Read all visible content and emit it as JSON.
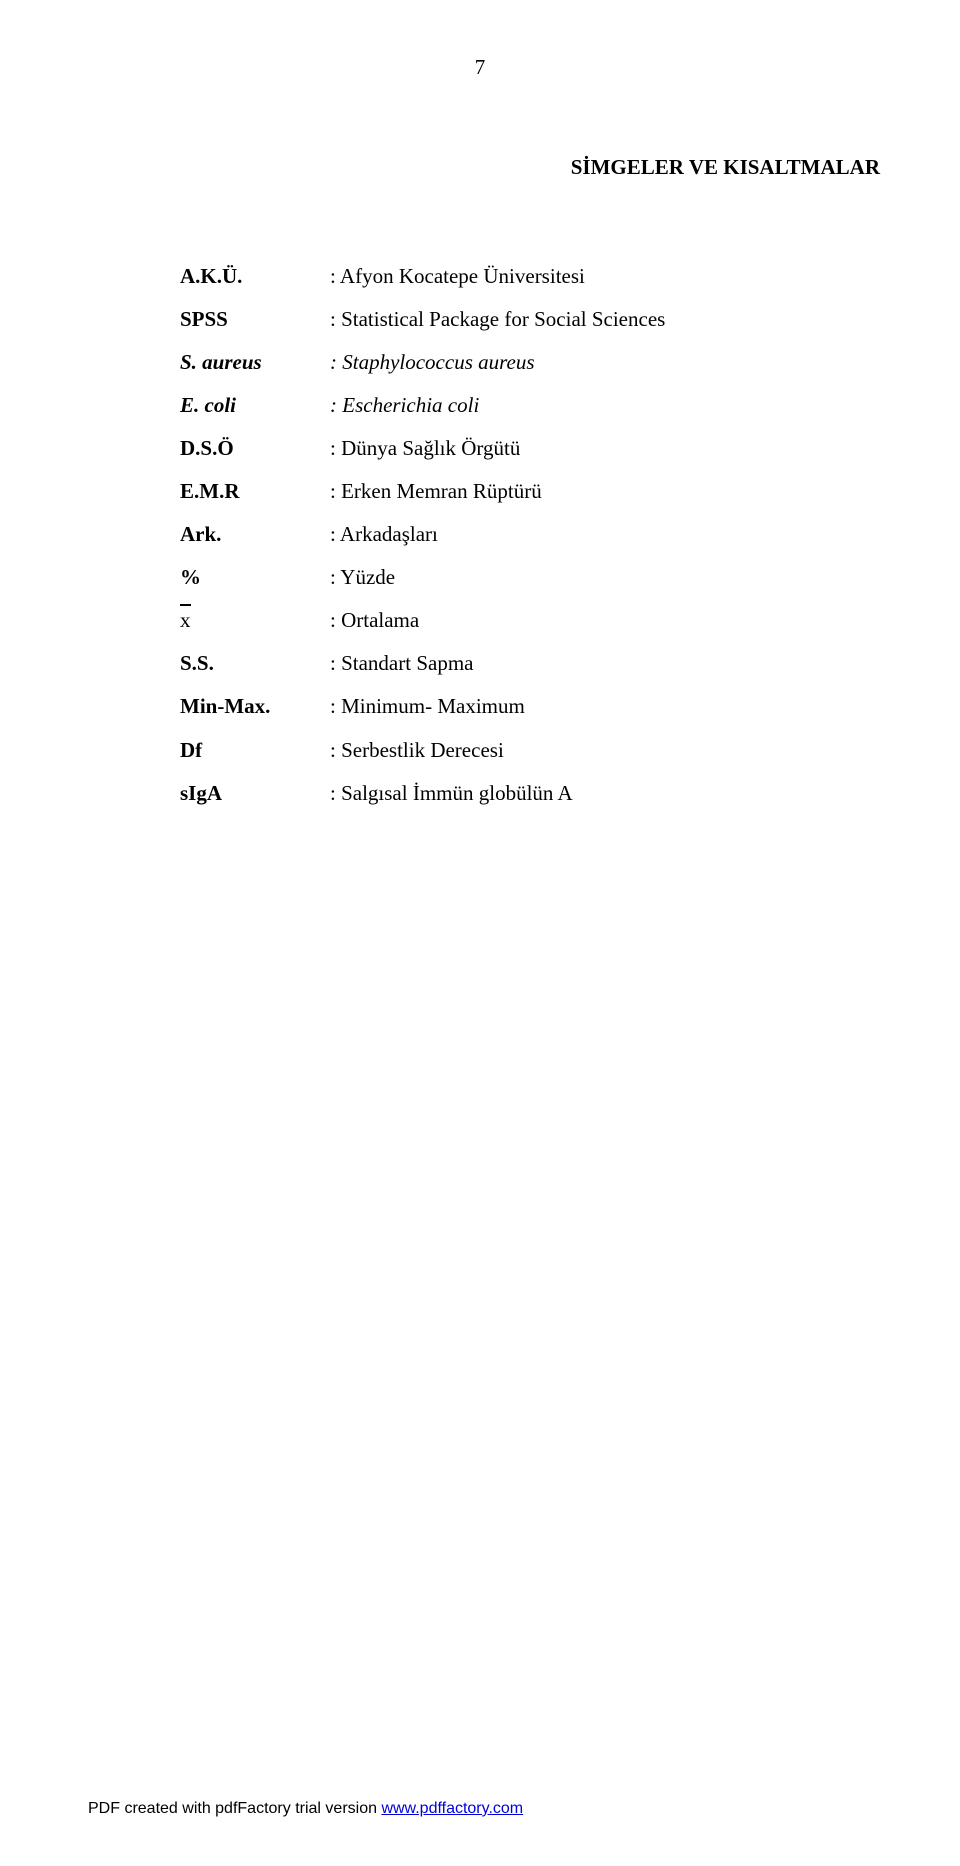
{
  "page_number": "7",
  "title": "SİMGELER VE KISALTMALAR",
  "rows": [
    {
      "term": "A.K.Ü.",
      "term_style": "bold",
      "def": ": Afyon Kocatepe Üniversitesi",
      "def_style": ""
    },
    {
      "term": "SPSS",
      "term_style": "bold",
      "def": ": Statistical Package for Social Sciences",
      "def_style": ""
    },
    {
      "term": "S. aureus",
      "term_style": "bold-italic",
      "def": ": Staphylococcus aureus",
      "def_style": "italic"
    },
    {
      "term": "E. coli",
      "term_style": "bold-italic",
      "def": ": Escherichia coli",
      "def_style": "italic"
    },
    {
      "term": "D.S.Ö",
      "term_style": "bold",
      "def": ": Dünya Sağlık Örgütü",
      "def_style": ""
    },
    {
      "term": "E.M.R",
      "term_style": "bold",
      "def": ": Erken Memran Rüptürü",
      "def_style": ""
    },
    {
      "term": "Ark.",
      "term_style": "bold",
      "def": ": Arkadaşları",
      "def_style": ""
    },
    {
      "term": "%",
      "term_style": "bold",
      "def": ": Yüzde",
      "def_style": ""
    },
    {
      "term": "x",
      "term_style": "",
      "def": ": Ortalama",
      "def_style": "",
      "xbar": true
    },
    {
      "term": "S.S.",
      "term_style": "bold",
      "def": ": Standart Sapma",
      "def_style": ""
    },
    {
      "term": "Min-Max.",
      "term_style": "bold",
      "def": ": Minimum- Maximum",
      "def_style": ""
    },
    {
      "term": "Df",
      "term_style": "bold",
      "def": ": Serbestlik Derecesi",
      "def_style": ""
    },
    {
      "term": "sIgA",
      "term_style": "bold",
      "def": ": Salgısal İmmün globülün A",
      "def_style": ""
    }
  ],
  "footer_text": "PDF created with pdfFactory trial version ",
  "footer_link_text": "www.pdffactory.com",
  "footer_link_href": "http://www.pdffactory.com"
}
